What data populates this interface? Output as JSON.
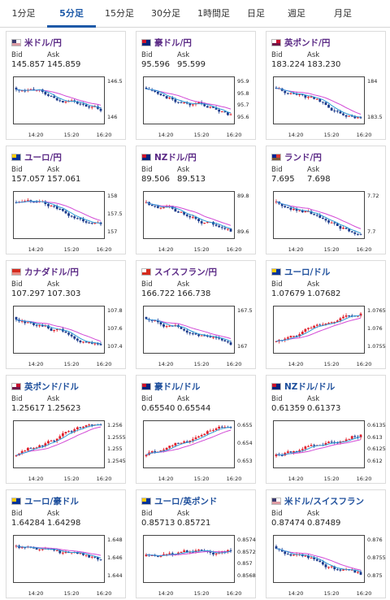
{
  "tabs": [
    "1分足",
    "5分足",
    "15分足",
    "30分足",
    "1時間足",
    "日足",
    "週足",
    "月足"
  ],
  "active_tab": 1,
  "labels": {
    "bid": "Bid",
    "ask": "Ask"
  },
  "colors": {
    "accent": "#1e5aa8",
    "up": "#e0202c",
    "down": "#1b3a8c",
    "ma_long": "#d24ad6",
    "ma_short": "#2c9ad6",
    "pair_text": "#5b2a86"
  },
  "cards": [
    {
      "pair": "米ドル/円",
      "flag": "us",
      "bid": "145.857",
      "ask": "145.859",
      "yticks": [
        "146.5",
        "146"
      ],
      "xticks": [
        "14:20",
        "15:20",
        "16:20"
      ],
      "trend": "down"
    },
    {
      "pair": "豪ドル/円",
      "flag": "au",
      "bid": "95.596",
      "ask": "95.599",
      "yticks": [
        "95.9",
        "95.8",
        "95.7",
        "95.6"
      ],
      "xticks": [
        "14:20",
        "15:20",
        "16:20"
      ],
      "trend": "down"
    },
    {
      "pair": "英ポンド/円",
      "flag": "gb",
      "bid": "183.224",
      "ask": "183.230",
      "yticks": [
        "184",
        "183.5"
      ],
      "xticks": [
        "14:20",
        "15:20",
        "16:20"
      ],
      "trend": "down"
    },
    {
      "pair": "ユーロ/円",
      "flag": "eu",
      "bid": "157.057",
      "ask": "157.061",
      "yticks": [
        "158",
        "157.5",
        "157"
      ],
      "xticks": [
        "14:20",
        "15:20",
        "16:20"
      ],
      "trend": "down"
    },
    {
      "pair": "NZドル/円",
      "flag": "nz",
      "bid": "89.506",
      "ask": "89.513",
      "yticks": [
        "89.8",
        "89.6"
      ],
      "xticks": [
        "14:20",
        "15:20",
        "16:20"
      ],
      "trend": "down"
    },
    {
      "pair": "ランド/円",
      "flag": "za",
      "bid": "7.695",
      "ask": "7.698",
      "yticks": [
        "7.72",
        "7.7"
      ],
      "xticks": [
        "14:20",
        "15:20",
        "16:20"
      ],
      "trend": "down"
    },
    {
      "pair": "カナダドル/円",
      "flag": "ca",
      "bid": "107.297",
      "ask": "107.303",
      "yticks": [
        "107.8",
        "107.6",
        "107.4"
      ],
      "xticks": [
        "14:20",
        "15:20",
        "16:20"
      ],
      "trend": "down"
    },
    {
      "pair": "スイスフラン/円",
      "flag": "ch",
      "bid": "166.722",
      "ask": "166.738",
      "yticks": [
        "167.5",
        "167"
      ],
      "xticks": [
        "14:20",
        "15:20",
        "16:20"
      ],
      "trend": "down"
    },
    {
      "pair": "ユーロ/ドル",
      "flag": "eu-us",
      "bid": "1.07679",
      "ask": "1.07682",
      "yticks": [
        "1.0765",
        "1.076",
        "1.0755"
      ],
      "xticks": [
        "14:20",
        "15:20",
        "16:20"
      ],
      "trend": "up"
    },
    {
      "pair": "英ポンド/ドル",
      "flag": "gb-us",
      "bid": "1.25617",
      "ask": "1.25623",
      "yticks": [
        "1.256",
        "1.2555",
        "1.255",
        "1.2545"
      ],
      "xticks": [
        "14:20",
        "15:20",
        "16:20"
      ],
      "trend": "up"
    },
    {
      "pair": "豪ドル/ドル",
      "flag": "au-us",
      "bid": "0.65540",
      "ask": "0.65544",
      "yticks": [
        "0.655",
        "0.654",
        "0.653"
      ],
      "xticks": [
        "14:20",
        "15:20",
        "16:20"
      ],
      "trend": "up"
    },
    {
      "pair": "NZドル/ドル",
      "flag": "nz-us",
      "bid": "0.61359",
      "ask": "0.61373",
      "yticks": [
        "0.6135",
        "0.613",
        "0.6125",
        "0.612"
      ],
      "xticks": [
        "14:20",
        "15:20",
        "16:20"
      ],
      "trend": "up"
    },
    {
      "pair": "ユーロ/豪ドル",
      "flag": "eu-au",
      "bid": "1.64284",
      "ask": "1.64298",
      "yticks": [
        "1.648",
        "1.646",
        "1.644"
      ],
      "xticks": [
        "14:20",
        "15:20",
        "16:20"
      ],
      "trend": "down"
    },
    {
      "pair": "ユーロ/英ポンド",
      "flag": "eu-gb",
      "bid": "0.85713",
      "ask": "0.85721",
      "yticks": [
        "0.8574",
        "0.8572",
        "0.857",
        "0.8568"
      ],
      "xticks": [
        "14:20",
        "15:20",
        "16:20"
      ],
      "trend": "flat"
    },
    {
      "pair": "米ドル/スイスフラン",
      "flag": "us-ch",
      "bid": "0.87474",
      "ask": "0.87489",
      "yticks": [
        "0.876",
        "0.8755",
        "0.875"
      ],
      "xticks": [
        "14:20",
        "15:20",
        "16:20"
      ],
      "trend": "down"
    }
  ]
}
